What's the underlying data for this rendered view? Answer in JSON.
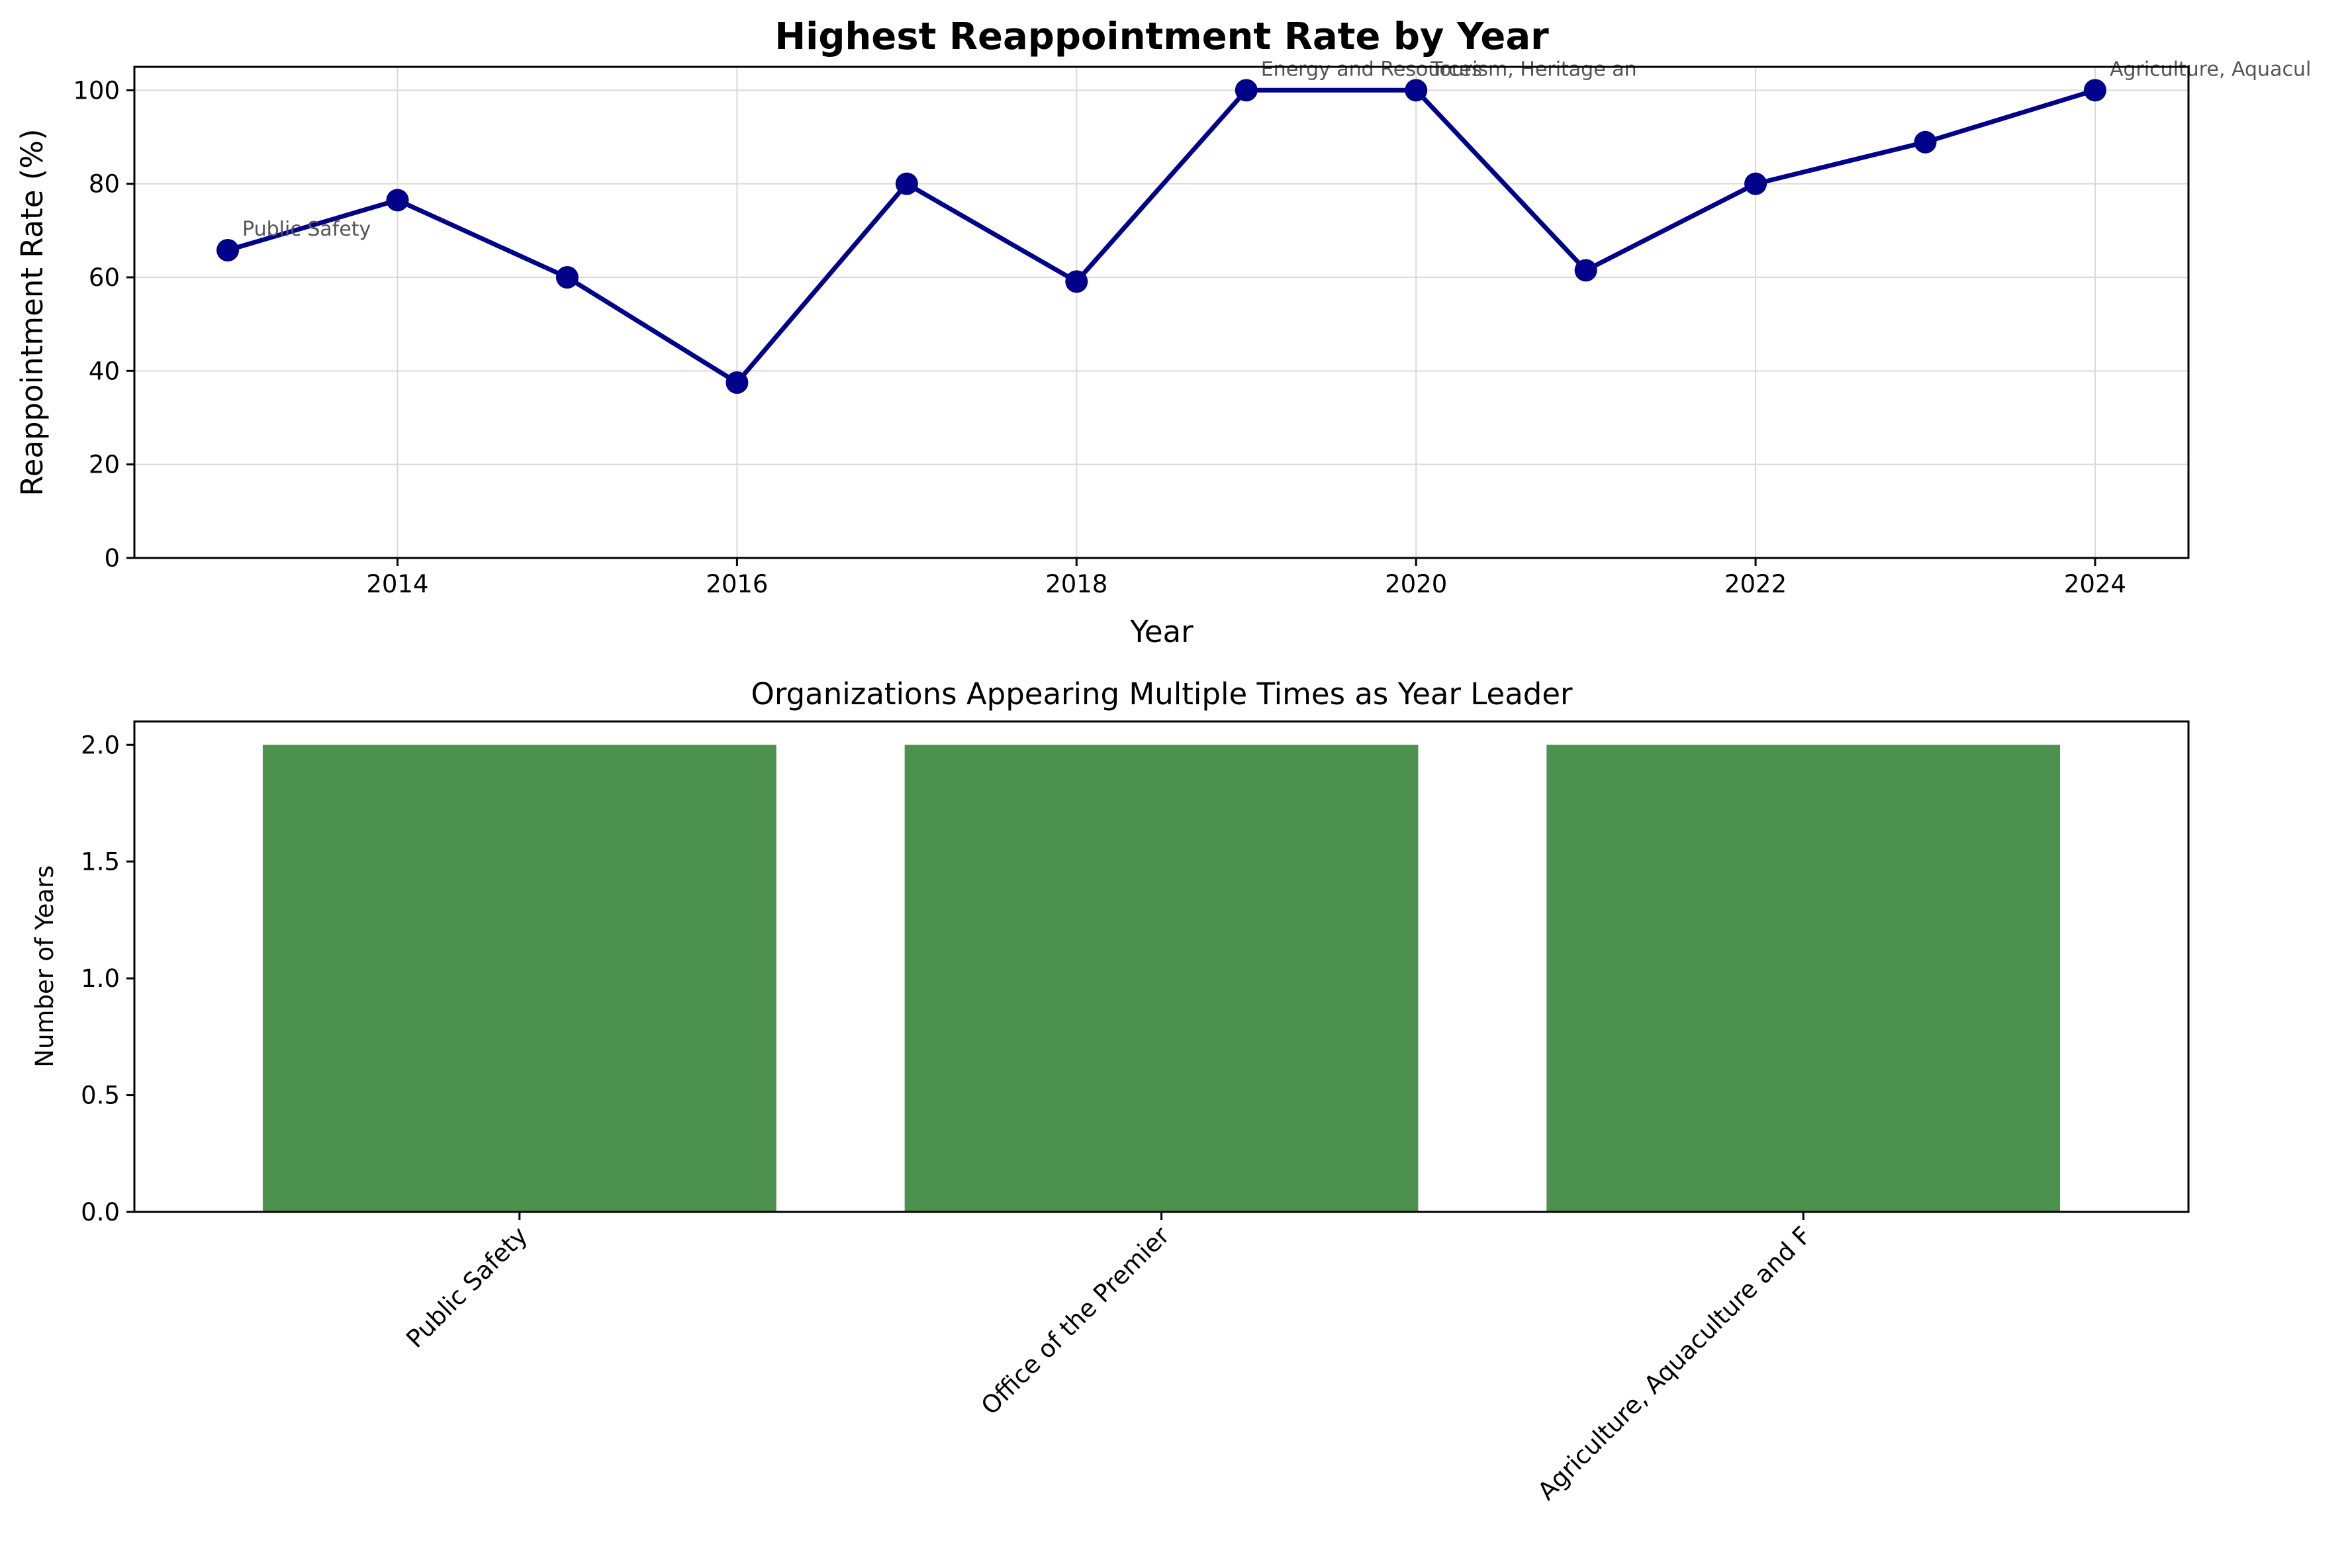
{
  "chart_data": [
    {
      "type": "line",
      "title": "Highest Reappointment Rate by Year",
      "xlabel": "Year",
      "ylabel": "Reappointment Rate (%)",
      "x": [
        2013,
        2014,
        2015,
        2016,
        2017,
        2018,
        2019,
        2020,
        2021,
        2022,
        2023,
        2024
      ],
      "values": [
        65.8,
        76.5,
        60.0,
        37.5,
        80.0,
        59.1,
        100.0,
        100.0,
        61.5,
        80.0,
        88.9,
        100.0
      ],
      "xticks": [
        "2014",
        "2016",
        "2018",
        "2020",
        "2022",
        "2024"
      ],
      "yticks": [
        "0",
        "20",
        "40",
        "60",
        "80",
        "100"
      ],
      "xlim": [
        2012.45,
        2024.55
      ],
      "ylim": [
        0,
        105
      ],
      "grid": true,
      "color": "#00008b",
      "annotations": [
        {
          "x": 2013,
          "y": 65.8,
          "text": "Public Safety"
        },
        {
          "x": 2019,
          "y": 100.0,
          "text": "Energy and Resources"
        },
        {
          "x": 2020,
          "y": 100.0,
          "text": "Tourism, Heritage an"
        },
        {
          "x": 2024,
          "y": 100.0,
          "text": "Agriculture, Aquacul"
        }
      ]
    },
    {
      "type": "bar",
      "title": "Organizations Appearing Multiple Times as Year Leader",
      "xlabel": "",
      "ylabel": "Number of Years",
      "categories": [
        "Public Safety",
        "Office of the Premier",
        "Agriculture, Aquaculture and F"
      ],
      "values": [
        2,
        2,
        2
      ],
      "yticks": [
        "0.0",
        "0.5",
        "1.0",
        "1.5",
        "2.0"
      ],
      "ylim": [
        0,
        2.1
      ],
      "grid": false,
      "color": "#4c914e"
    }
  ]
}
